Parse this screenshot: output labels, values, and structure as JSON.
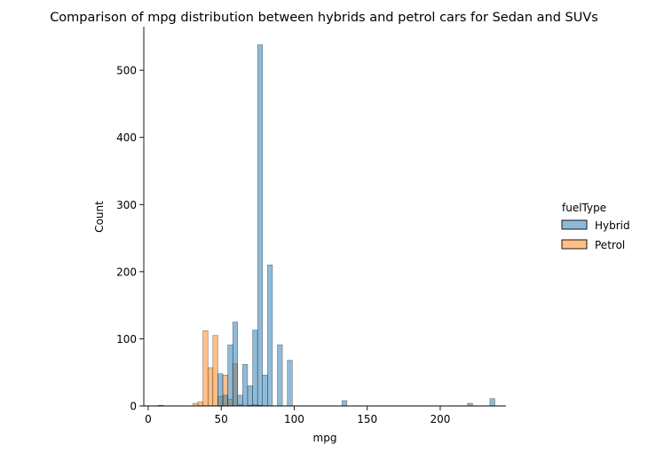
{
  "chart_data": {
    "type": "bar",
    "subtype": "histogram",
    "title": "Comparison of mpg distribution between hybrids and petrol cars for Sedan and SUVs",
    "xlabel": "mpg",
    "ylabel": "Count",
    "xlim": [
      -3,
      245
    ],
    "ylim": [
      0,
      565
    ],
    "xticks": [
      0,
      50,
      100,
      150,
      200
    ],
    "yticks": [
      0,
      100,
      200,
      300,
      400,
      500
    ],
    "bin_width": 3.4,
    "legend": {
      "title": "fuelType",
      "placement": "center-right"
    },
    "series": [
      {
        "name": "Petrol",
        "color": "#ff7f0e",
        "bins": [
          {
            "x0": 30.7,
            "count": 4
          },
          {
            "x0": 34.1,
            "count": 6
          },
          {
            "x0": 37.5,
            "count": 112
          },
          {
            "x0": 40.9,
            "count": 57
          },
          {
            "x0": 44.3,
            "count": 105
          },
          {
            "x0": 47.7,
            "count": 14
          },
          {
            "x0": 51.1,
            "count": 46
          },
          {
            "x0": 54.5,
            "count": 10
          },
          {
            "x0": 57.9,
            "count": 63
          },
          {
            "x0": 61.3,
            "count": 2
          },
          {
            "x0": 68.1,
            "count": 1
          },
          {
            "x0": 71.5,
            "count": 2
          },
          {
            "x0": 74.9,
            "count": 1
          }
        ]
      },
      {
        "name": "Hybrid",
        "color": "#1f77b4",
        "bins": [
          {
            "x0": 6.9,
            "count": 1
          },
          {
            "x0": 47.7,
            "count": 48
          },
          {
            "x0": 51.1,
            "count": 16
          },
          {
            "x0": 54.5,
            "count": 91
          },
          {
            "x0": 57.9,
            "count": 125
          },
          {
            "x0": 61.3,
            "count": 16
          },
          {
            "x0": 64.7,
            "count": 62
          },
          {
            "x0": 68.1,
            "count": 30
          },
          {
            "x0": 71.5,
            "count": 113
          },
          {
            "x0": 74.9,
            "count": 538
          },
          {
            "x0": 78.3,
            "count": 46
          },
          {
            "x0": 81.7,
            "count": 210
          },
          {
            "x0": 88.5,
            "count": 91
          },
          {
            "x0": 95.3,
            "count": 68
          },
          {
            "x0": 132.7,
            "count": 8
          },
          {
            "x0": 218.7,
            "count": 4
          },
          {
            "x0": 234.0,
            "count": 11
          }
        ]
      }
    ]
  }
}
